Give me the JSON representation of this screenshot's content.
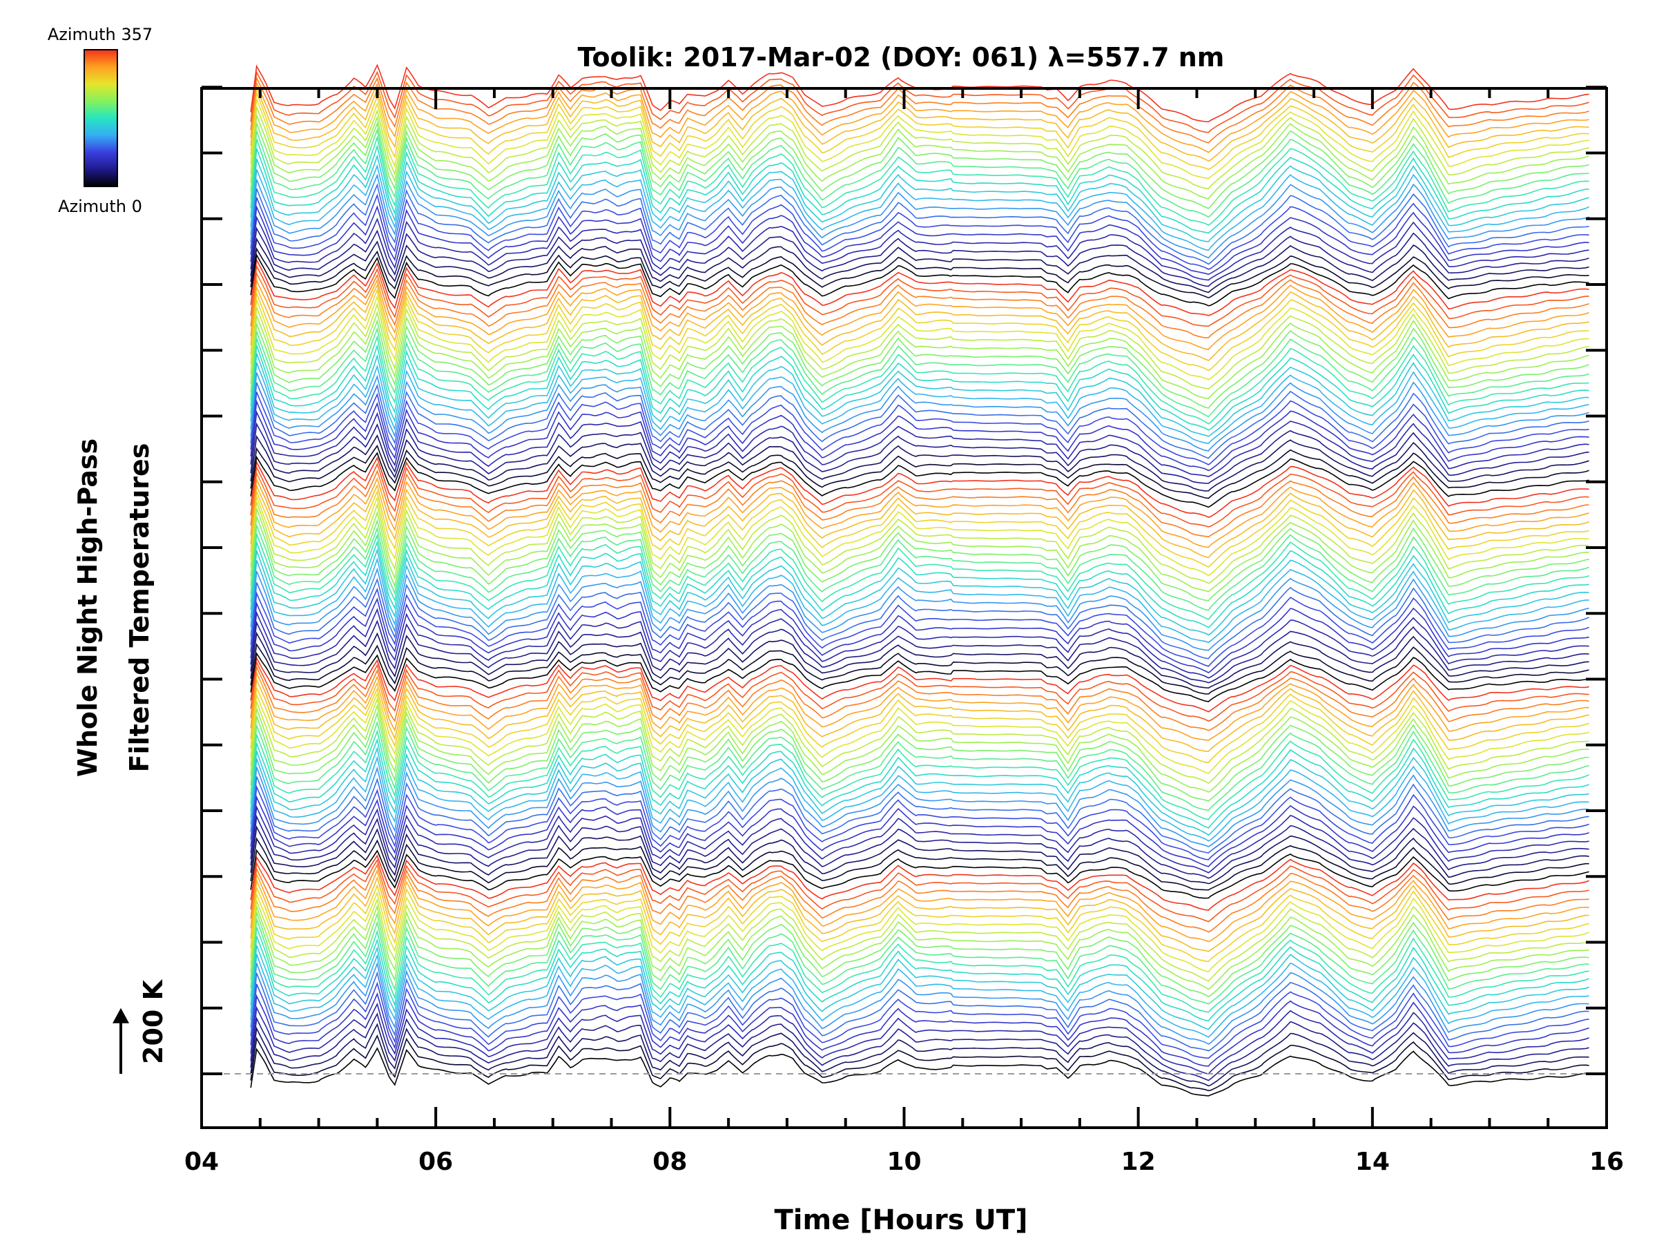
{
  "chart_data": {
    "type": "line",
    "title": "Toolik: 2017-Mar-02 (DOY: 061) λ=557.7 nm",
    "xlabel": "Time [Hours UT]",
    "ylabel_line1": "Whole Night High-Pass",
    "ylabel_line2": "Filtered Temperatures",
    "scale_label": "200 K",
    "scale_value": 200,
    "scale_units": "K",
    "xlim": [
      4,
      16
    ],
    "x_ticks": [
      4,
      6,
      8,
      10,
      12,
      14,
      16
    ],
    "x_tick_labels": [
      "04",
      "06",
      "08",
      "10",
      "12",
      "14",
      "16"
    ],
    "y_ticks_data": [
      0,
      200,
      400,
      600,
      800,
      1000,
      1200,
      1400,
      1600,
      1800,
      2000,
      2200,
      2400,
      2600,
      2800,
      3000
    ],
    "ylim": [
      -160,
      3000
    ],
    "series_count": 120,
    "series_offset_step": 25,
    "colorbar": {
      "top_label": "Azimuth 357",
      "bottom_label": "Azimuth 0",
      "min": 0,
      "max": 357,
      "colors": [
        "#000000",
        "#1e1a8c",
        "#3a3fe0",
        "#34aef4",
        "#27e5c0",
        "#86f25c",
        "#e6e42b",
        "#ffa020",
        "#f2311b"
      ]
    },
    "profile": {
      "x": [
        4.42,
        4.47,
        4.55,
        4.62,
        4.75,
        5.0,
        5.15,
        5.3,
        5.4,
        5.5,
        5.6,
        5.65,
        5.75,
        5.85,
        6.0,
        6.3,
        6.45,
        6.6,
        6.8,
        6.95,
        7.05,
        7.15,
        7.25,
        7.35,
        7.45,
        7.55,
        7.65,
        7.75,
        7.85,
        7.92,
        8.0,
        8.08,
        8.15,
        8.3,
        8.4,
        8.5,
        8.62,
        8.7,
        8.85,
        8.95,
        9.05,
        9.15,
        9.3,
        9.5,
        9.8,
        9.95,
        10.1,
        10.4,
        10.6,
        11.0,
        11.3,
        11.4,
        11.5,
        11.6,
        11.75,
        11.9,
        12.0,
        12.2,
        12.45,
        12.6,
        12.8,
        13.05,
        13.3,
        13.55,
        13.8,
        14.0,
        14.2,
        14.35,
        14.45,
        14.65,
        15.0,
        15.5,
        15.85
      ],
      "y": [
        -70,
        140,
        60,
        -20,
        -40,
        -30,
        10,
        80,
        40,
        140,
        -20,
        -60,
        120,
        40,
        10,
        -10,
        -60,
        -20,
        0,
        10,
        100,
        40,
        90,
        90,
        100,
        80,
        90,
        100,
        -40,
        -60,
        -20,
        -40,
        10,
        -10,
        20,
        60,
        0,
        40,
        90,
        100,
        70,
        0,
        -60,
        -20,
        20,
        90,
        40,
        40,
        30,
        30,
        20,
        -30,
        30,
        40,
        60,
        50,
        20,
        -60,
        -100,
        -120,
        -50,
        10,
        110,
        60,
        -20,
        -50,
        20,
        110,
        60,
        -70,
        -40,
        -10,
        10
      ]
    }
  }
}
